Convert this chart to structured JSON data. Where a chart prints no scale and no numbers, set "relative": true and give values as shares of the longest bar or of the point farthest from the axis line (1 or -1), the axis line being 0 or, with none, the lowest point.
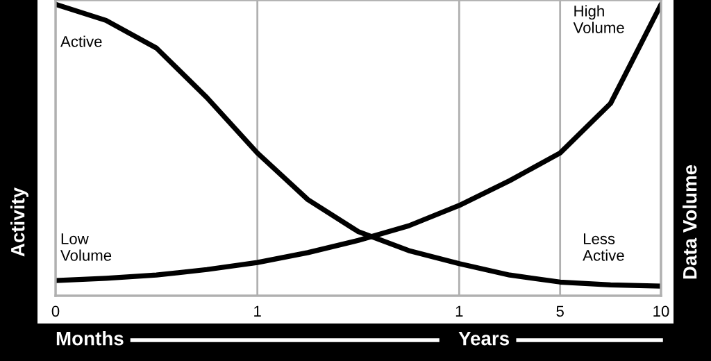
{
  "chart_data": {
    "type": "line",
    "relative": true,
    "ylabel": "Activity",
    "y2label": "Data Volume",
    "categories": [
      "0",
      null,
      null,
      null,
      "1",
      null,
      null,
      null,
      "1",
      null,
      "5",
      null,
      "10"
    ],
    "tick_labels": "x",
    "grid": "x",
    "line_style": "solid",
    "marker": "none",
    "series": [
      {
        "color": "#000000",
        "values": [
          1.0,
          0.945,
          0.85,
          0.68,
          0.49,
          0.33,
          0.22,
          0.155,
          0.11,
          0.071,
          0.047,
          0.037,
          0.033
        ]
      },
      {
        "color": "#000000",
        "values": [
          0.052,
          0.06,
          0.071,
          0.09,
          0.114,
          0.148,
          0.19,
          0.24,
          0.31,
          0.395,
          0.49,
          0.66,
          1.0
        ]
      }
    ],
    "annotations": [
      "Active",
      "High\nVolume",
      "Low\nVolume",
      "Less\nActive",
      "Months",
      "Years"
    ]
  }
}
